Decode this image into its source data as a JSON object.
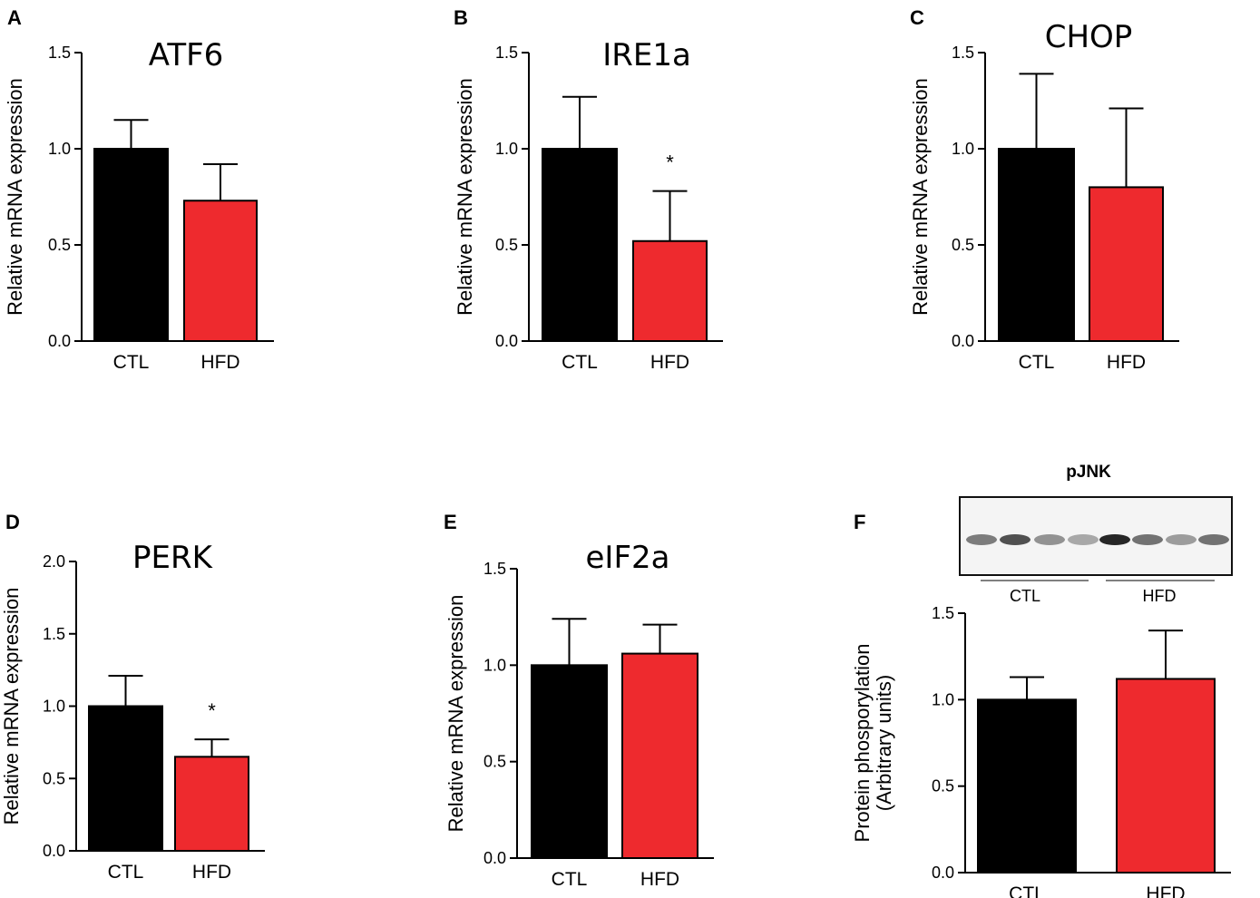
{
  "colors": {
    "CTL": "#000000",
    "HFD": "#ee2a2e",
    "axis": "#000000"
  },
  "chart_data": [
    {
      "id": "A",
      "panel_label": "A",
      "type": "bar",
      "title": "ATF6",
      "ylabel": "Relative mRNA expression",
      "categories": [
        "CTL",
        "HFD"
      ],
      "values": [
        1.0,
        0.73
      ],
      "errors": [
        0.15,
        0.19
      ],
      "ylim": [
        0,
        1.5
      ],
      "yticks": [
        "0.0",
        "0.5",
        "1.0",
        "1.5"
      ],
      "significance": [
        "",
        ""
      ]
    },
    {
      "id": "B",
      "panel_label": "B",
      "type": "bar",
      "title": "IRE1a",
      "ylabel": "Relative mRNA expression",
      "categories": [
        "CTL",
        "HFD"
      ],
      "values": [
        1.0,
        0.52
      ],
      "errors": [
        0.27,
        0.26
      ],
      "ylim": [
        0,
        1.5
      ],
      "yticks": [
        "0.0",
        "0.5",
        "1.0",
        "1.5"
      ],
      "significance": [
        "",
        "*"
      ]
    },
    {
      "id": "C",
      "panel_label": "C",
      "type": "bar",
      "title": "CHOP",
      "ylabel": "Relative mRNA expression",
      "categories": [
        "CTL",
        "HFD"
      ],
      "values": [
        1.0,
        0.8
      ],
      "errors": [
        0.39,
        0.41
      ],
      "ylim": [
        0,
        1.5
      ],
      "yticks": [
        "0.0",
        "0.5",
        "1.0",
        "1.5"
      ],
      "significance": [
        "",
        ""
      ]
    },
    {
      "id": "D",
      "panel_label": "D",
      "type": "bar",
      "title": "PERK",
      "ylabel": "Relative mRNA expression",
      "categories": [
        "CTL",
        "HFD"
      ],
      "values": [
        1.0,
        0.65
      ],
      "errors": [
        0.21,
        0.12
      ],
      "ylim": [
        0,
        2.0
      ],
      "yticks": [
        "0.0",
        "0.5",
        "1.0",
        "1.5",
        "2.0"
      ],
      "significance": [
        "",
        "*"
      ]
    },
    {
      "id": "E",
      "panel_label": "E",
      "type": "bar",
      "title": "eIF2a",
      "ylabel": "Relative mRNA expression",
      "categories": [
        "CTL",
        "HFD"
      ],
      "values": [
        1.0,
        1.06
      ],
      "errors": [
        0.24,
        0.15
      ],
      "ylim": [
        0,
        1.5
      ],
      "yticks": [
        "0.0",
        "0.5",
        "1.0",
        "1.5"
      ],
      "significance": [
        "",
        ""
      ]
    },
    {
      "id": "F",
      "panel_label": "F",
      "type": "bar",
      "title": "",
      "ylabel_lines": [
        "Protein phosporylation",
        "(Arbitrary units)"
      ],
      "categories": [
        "CTL",
        "HFD"
      ],
      "values": [
        1.0,
        1.12
      ],
      "errors": [
        0.13,
        0.28
      ],
      "ylim": [
        0,
        1.5
      ],
      "yticks": [
        "0.0",
        "0.5",
        "1.0",
        "1.5"
      ],
      "significance": [
        "",
        ""
      ],
      "blot": {
        "label": "pJNK",
        "groups": [
          "CTL",
          "HFD"
        ],
        "lanes_per_group": 4
      }
    }
  ]
}
